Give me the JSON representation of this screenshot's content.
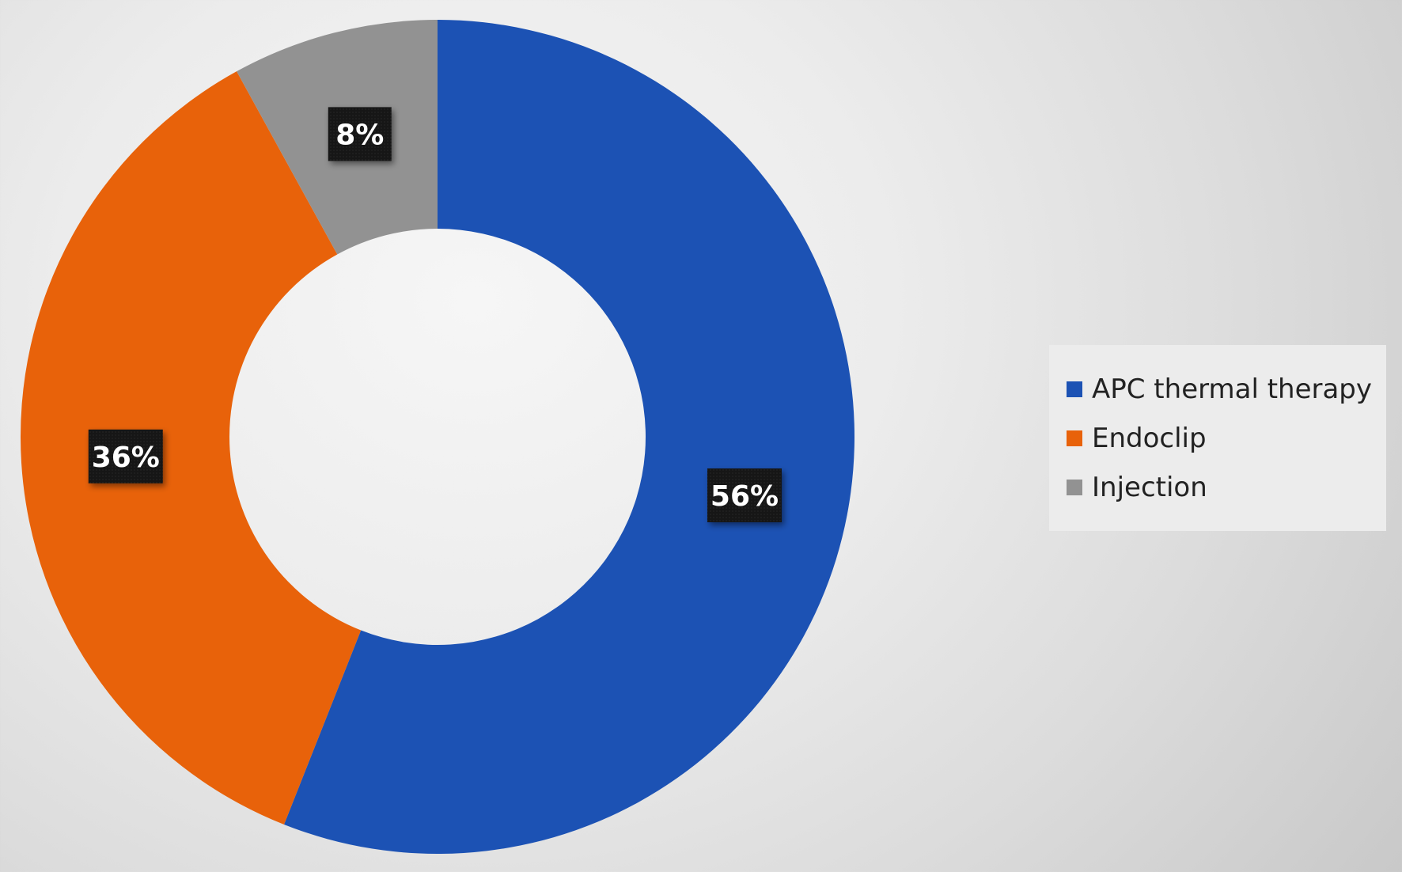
{
  "chart_data": {
    "type": "pie",
    "variant": "doughnut",
    "title": "",
    "series": [
      {
        "name": "APC thermal therapy",
        "value": 56,
        "label": "56%",
        "color": "#1c52b4"
      },
      {
        "name": "Endoclip",
        "value": 36,
        "label": "36%",
        "color": "#e8620a"
      },
      {
        "name": "Injection",
        "value": 8,
        "label": "8%",
        "color": "#929292"
      }
    ],
    "legend": {
      "position": "right",
      "entries": [
        "APC thermal therapy",
        "Endoclip",
        "Injection"
      ]
    },
    "start_angle": "12 o'clock",
    "direction": "clockwise"
  }
}
